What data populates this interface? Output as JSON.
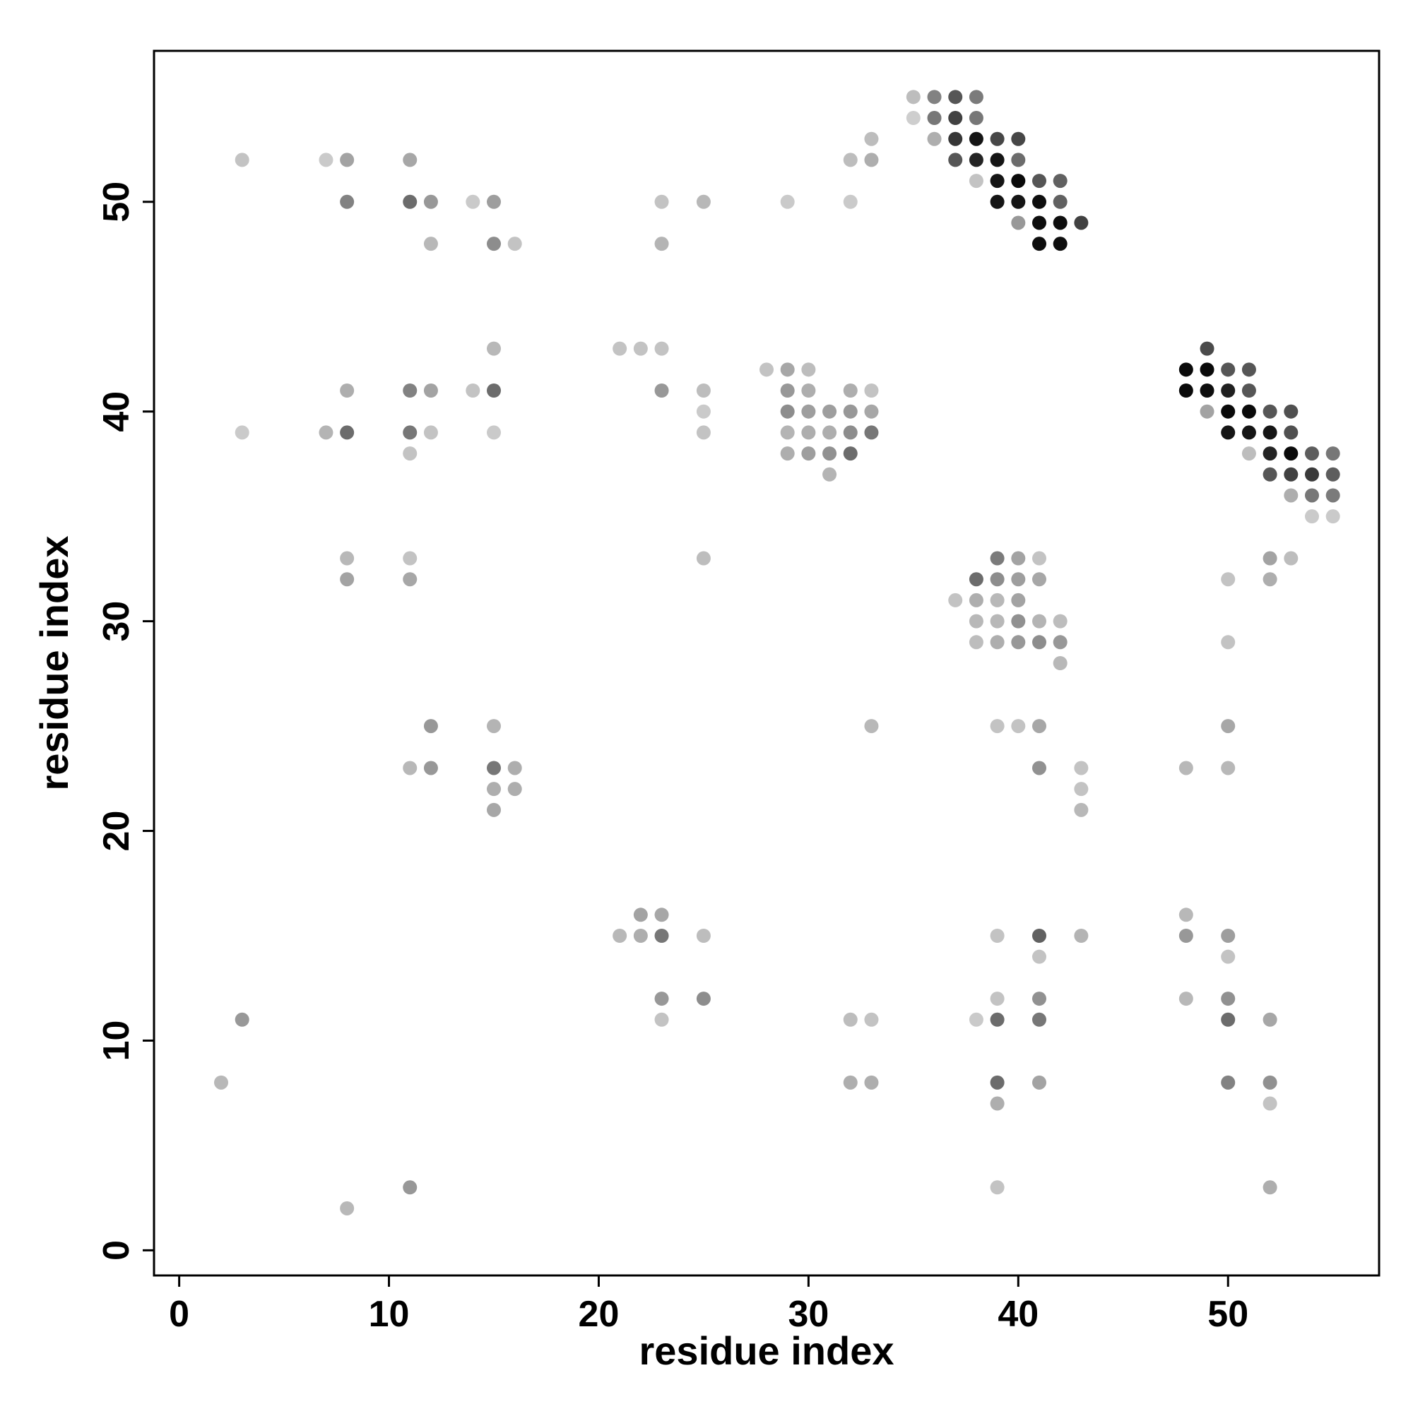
{
  "chart_data": {
    "type": "scatter",
    "title": "",
    "xlabel": "residue index",
    "ylabel": "residue index",
    "xlim": [
      -1.2,
      57.2
    ],
    "ylim": [
      -1.2,
      57.2
    ],
    "x_ticks": [
      0,
      10,
      20,
      30,
      40,
      50
    ],
    "y_ticks": [
      0,
      10,
      20,
      30,
      40,
      50
    ],
    "x_tick_labels": [
      "0",
      "10",
      "20",
      "30",
      "40",
      "50"
    ],
    "y_tick_labels": [
      "0",
      "10",
      "20",
      "30",
      "40",
      "50"
    ],
    "grid": false,
    "legend": "none",
    "encoding": "point grayscale shade = value (0 = lightest gray, 1 = black)",
    "points": [
      [
        35,
        55,
        0.18
      ],
      [
        36,
        55,
        0.45
      ],
      [
        37,
        55,
        0.65
      ],
      [
        38,
        55,
        0.48
      ],
      [
        35,
        54,
        0.1
      ],
      [
        36,
        54,
        0.5
      ],
      [
        37,
        54,
        0.75
      ],
      [
        38,
        54,
        0.5
      ],
      [
        36,
        53,
        0.25
      ],
      [
        37,
        53,
        0.8
      ],
      [
        38,
        53,
        0.95
      ],
      [
        39,
        53,
        0.72
      ],
      [
        40,
        53,
        0.72
      ],
      [
        37,
        52,
        0.65
      ],
      [
        38,
        52,
        0.88
      ],
      [
        39,
        52,
        0.95
      ],
      [
        40,
        52,
        0.55
      ],
      [
        38,
        51,
        0.15
      ],
      [
        39,
        51,
        0.95
      ],
      [
        40,
        51,
        1.0
      ],
      [
        41,
        51,
        0.65
      ],
      [
        42,
        51,
        0.6
      ],
      [
        39,
        50,
        0.95
      ],
      [
        40,
        50,
        0.95
      ],
      [
        41,
        50,
        0.98
      ],
      [
        42,
        50,
        0.6
      ],
      [
        40,
        49,
        0.35
      ],
      [
        41,
        49,
        0.98
      ],
      [
        42,
        49,
        0.98
      ],
      [
        43,
        49,
        0.75
      ],
      [
        41,
        48,
        0.98
      ],
      [
        42,
        48,
        0.98
      ],
      [
        49,
        43,
        0.7
      ],
      [
        48,
        42,
        1.0
      ],
      [
        49,
        42,
        1.0
      ],
      [
        50,
        42,
        0.65
      ],
      [
        51,
        42,
        0.65
      ],
      [
        48,
        41,
        1.0
      ],
      [
        49,
        41,
        0.98
      ],
      [
        50,
        41,
        0.9
      ],
      [
        51,
        41,
        0.65
      ],
      [
        49,
        40,
        0.3
      ],
      [
        50,
        40,
        1.0
      ],
      [
        51,
        40,
        1.0
      ],
      [
        52,
        40,
        0.65
      ],
      [
        53,
        40,
        0.68
      ],
      [
        50,
        39,
        0.95
      ],
      [
        51,
        39,
        0.95
      ],
      [
        52,
        39,
        0.95
      ],
      [
        53,
        39,
        0.68
      ],
      [
        51,
        38,
        0.18
      ],
      [
        52,
        38,
        0.88
      ],
      [
        53,
        38,
        1.0
      ],
      [
        54,
        38,
        0.62
      ],
      [
        55,
        38,
        0.5
      ],
      [
        52,
        37,
        0.65
      ],
      [
        53,
        37,
        0.75
      ],
      [
        54,
        37,
        0.78
      ],
      [
        55,
        37,
        0.62
      ],
      [
        53,
        36,
        0.25
      ],
      [
        54,
        36,
        0.5
      ],
      [
        55,
        36,
        0.48
      ],
      [
        54,
        35,
        0.12
      ],
      [
        55,
        35,
        0.12
      ],
      [
        3,
        52,
        0.15
      ],
      [
        7,
        52,
        0.12
      ],
      [
        8,
        52,
        0.3
      ],
      [
        11,
        52,
        0.28
      ],
      [
        8,
        50,
        0.45
      ],
      [
        11,
        50,
        0.55
      ],
      [
        12,
        50,
        0.35
      ],
      [
        14,
        50,
        0.12
      ],
      [
        15,
        50,
        0.32
      ],
      [
        12,
        48,
        0.2
      ],
      [
        15,
        48,
        0.4
      ],
      [
        16,
        48,
        0.15
      ],
      [
        23,
        50,
        0.15
      ],
      [
        25,
        50,
        0.2
      ],
      [
        29,
        50,
        0.12
      ],
      [
        32,
        50,
        0.12
      ],
      [
        23,
        48,
        0.22
      ],
      [
        32,
        52,
        0.18
      ],
      [
        33,
        52,
        0.25
      ],
      [
        33,
        53,
        0.18
      ],
      [
        15,
        43,
        0.2
      ],
      [
        21,
        43,
        0.15
      ],
      [
        22,
        43,
        0.15
      ],
      [
        23,
        43,
        0.15
      ],
      [
        8,
        41,
        0.25
      ],
      [
        11,
        41,
        0.45
      ],
      [
        12,
        41,
        0.3
      ],
      [
        14,
        41,
        0.15
      ],
      [
        15,
        41,
        0.55
      ],
      [
        23,
        41,
        0.35
      ],
      [
        25,
        41,
        0.18
      ],
      [
        25,
        40,
        0.12
      ],
      [
        3,
        39,
        0.12
      ],
      [
        7,
        39,
        0.22
      ],
      [
        8,
        39,
        0.55
      ],
      [
        11,
        39,
        0.5
      ],
      [
        12,
        39,
        0.15
      ],
      [
        15,
        39,
        0.12
      ],
      [
        11,
        38,
        0.15
      ],
      [
        25,
        39,
        0.15
      ],
      [
        28,
        42,
        0.15
      ],
      [
        29,
        42,
        0.28
      ],
      [
        30,
        42,
        0.18
      ],
      [
        29,
        41,
        0.35
      ],
      [
        30,
        41,
        0.25
      ],
      [
        32,
        41,
        0.25
      ],
      [
        33,
        41,
        0.15
      ],
      [
        29,
        40,
        0.4
      ],
      [
        30,
        40,
        0.32
      ],
      [
        31,
        40,
        0.32
      ],
      [
        32,
        40,
        0.35
      ],
      [
        33,
        40,
        0.28
      ],
      [
        29,
        39,
        0.22
      ],
      [
        30,
        39,
        0.25
      ],
      [
        31,
        39,
        0.25
      ],
      [
        32,
        39,
        0.4
      ],
      [
        33,
        39,
        0.5
      ],
      [
        29,
        38,
        0.25
      ],
      [
        30,
        38,
        0.32
      ],
      [
        31,
        38,
        0.38
      ],
      [
        32,
        38,
        0.55
      ],
      [
        31,
        37,
        0.22
      ],
      [
        8,
        33,
        0.2
      ],
      [
        11,
        33,
        0.15
      ],
      [
        25,
        33,
        0.18
      ],
      [
        8,
        32,
        0.3
      ],
      [
        11,
        32,
        0.28
      ],
      [
        39,
        33,
        0.48
      ],
      [
        40,
        33,
        0.3
      ],
      [
        41,
        33,
        0.15
      ],
      [
        38,
        32,
        0.55
      ],
      [
        39,
        32,
        0.4
      ],
      [
        40,
        32,
        0.32
      ],
      [
        41,
        32,
        0.28
      ],
      [
        37,
        31,
        0.15
      ],
      [
        38,
        31,
        0.25
      ],
      [
        39,
        31,
        0.2
      ],
      [
        40,
        31,
        0.3
      ],
      [
        38,
        30,
        0.2
      ],
      [
        39,
        30,
        0.2
      ],
      [
        40,
        30,
        0.38
      ],
      [
        41,
        30,
        0.22
      ],
      [
        42,
        30,
        0.18
      ],
      [
        38,
        29,
        0.18
      ],
      [
        39,
        29,
        0.25
      ],
      [
        40,
        29,
        0.35
      ],
      [
        41,
        29,
        0.4
      ],
      [
        42,
        29,
        0.35
      ],
      [
        42,
        28,
        0.2
      ],
      [
        39,
        25,
        0.15
      ],
      [
        40,
        25,
        0.15
      ],
      [
        41,
        25,
        0.28
      ],
      [
        33,
        25,
        0.2
      ],
      [
        41,
        23,
        0.38
      ],
      [
        43,
        23,
        0.15
      ],
      [
        43,
        22,
        0.15
      ],
      [
        43,
        21,
        0.2
      ],
      [
        52,
        33,
        0.3
      ],
      [
        53,
        33,
        0.18
      ],
      [
        50,
        32,
        0.15
      ],
      [
        52,
        32,
        0.25
      ],
      [
        50,
        29,
        0.15
      ],
      [
        50,
        25,
        0.28
      ],
      [
        48,
        23,
        0.2
      ],
      [
        50,
        23,
        0.2
      ],
      [
        12,
        25,
        0.35
      ],
      [
        15,
        25,
        0.22
      ],
      [
        11,
        23,
        0.2
      ],
      [
        12,
        23,
        0.35
      ],
      [
        15,
        23,
        0.5
      ],
      [
        16,
        23,
        0.25
      ],
      [
        15,
        22,
        0.25
      ],
      [
        16,
        22,
        0.25
      ],
      [
        15,
        21,
        0.28
      ],
      [
        22,
        16,
        0.3
      ],
      [
        23,
        16,
        0.28
      ],
      [
        21,
        15,
        0.2
      ],
      [
        22,
        15,
        0.25
      ],
      [
        23,
        15,
        0.5
      ],
      [
        25,
        15,
        0.18
      ],
      [
        23,
        12,
        0.35
      ],
      [
        25,
        12,
        0.4
      ],
      [
        23,
        11,
        0.15
      ],
      [
        39,
        15,
        0.15
      ],
      [
        41,
        15,
        0.6
      ],
      [
        43,
        15,
        0.22
      ],
      [
        41,
        14,
        0.15
      ],
      [
        39,
        12,
        0.15
      ],
      [
        41,
        12,
        0.38
      ],
      [
        38,
        11,
        0.12
      ],
      [
        39,
        11,
        0.55
      ],
      [
        41,
        11,
        0.5
      ],
      [
        32,
        11,
        0.18
      ],
      [
        33,
        11,
        0.15
      ],
      [
        32,
        8,
        0.25
      ],
      [
        33,
        8,
        0.25
      ],
      [
        39,
        8,
        0.55
      ],
      [
        41,
        8,
        0.3
      ],
      [
        39,
        7,
        0.25
      ],
      [
        48,
        16,
        0.2
      ],
      [
        48,
        15,
        0.35
      ],
      [
        50,
        15,
        0.32
      ],
      [
        50,
        14,
        0.15
      ],
      [
        48,
        12,
        0.2
      ],
      [
        50,
        12,
        0.38
      ],
      [
        50,
        11,
        0.55
      ],
      [
        52,
        11,
        0.28
      ],
      [
        50,
        8,
        0.45
      ],
      [
        52,
        8,
        0.38
      ],
      [
        52,
        7,
        0.15
      ],
      [
        3,
        11,
        0.35
      ],
      [
        2,
        8,
        0.2
      ],
      [
        11,
        3,
        0.35
      ],
      [
        8,
        2,
        0.2
      ],
      [
        39,
        3,
        0.15
      ],
      [
        52,
        3,
        0.25
      ]
    ]
  }
}
